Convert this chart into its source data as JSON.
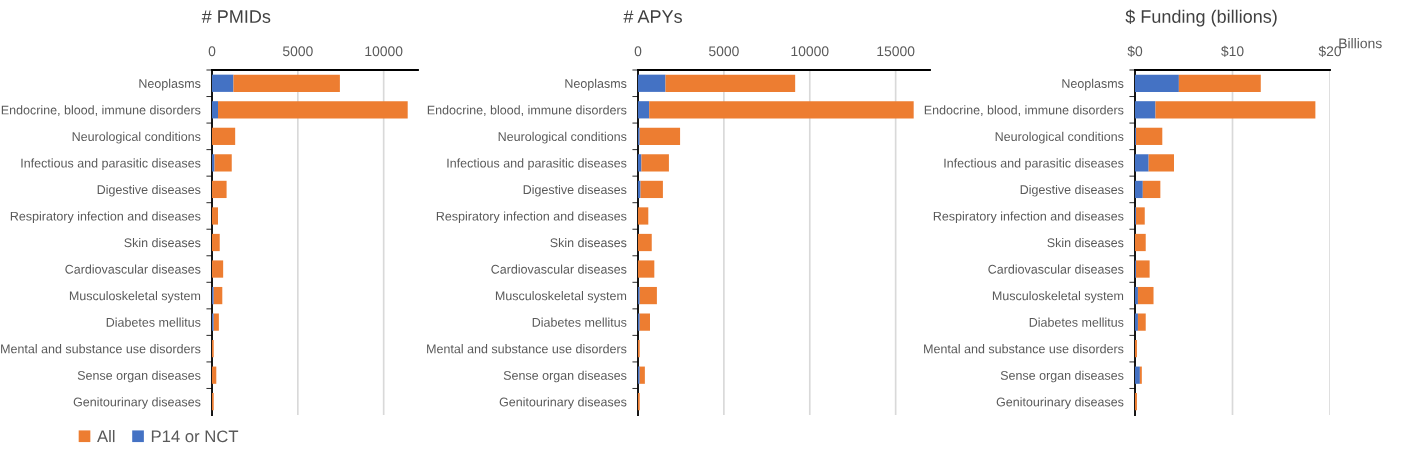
{
  "chart_data": [
    {
      "type": "bar",
      "orientation": "horizontal",
      "stacked": true,
      "title": "# PMIDs",
      "legend": "bottom",
      "grid": "x",
      "categories": [
        "Neoplasms",
        "Endocrine, blood, immune disorders",
        "Neurological conditions",
        "Infectious and parasitic diseases",
        "Digestive diseases",
        "Respiratory infection and diseases",
        "Skin diseases",
        "Cardiovascular diseases",
        "Musculoskeletal system",
        "Diabetes mellitus",
        "Mental and substance use disorders",
        "Sense organ diseases",
        "Genitourinary diseases"
      ],
      "xlim": [
        0,
        12000
      ],
      "xticks": [
        0,
        5000,
        10000
      ],
      "series": [
        {
          "name": "P14 or NCT",
          "color": "#4472c4",
          "values": [
            1250,
            350,
            0,
            150,
            0,
            0,
            0,
            0,
            100,
            100,
            0,
            0,
            0
          ]
        },
        {
          "name": "All",
          "color": "#ed7d31",
          "values": [
            6200,
            11050,
            1350,
            1000,
            850,
            350,
            450,
            650,
            500,
            300,
            100,
            250,
            100
          ]
        }
      ]
    },
    {
      "type": "bar",
      "orientation": "horizontal",
      "stacked": true,
      "title": "# APYs",
      "grid": "x",
      "categories": [
        "Neoplasms",
        "Endocrine, blood, immune disorders",
        "Neurological conditions",
        "Infectious and parasitic diseases",
        "Digestive diseases",
        "Respiratory infection and diseases",
        "Skin diseases",
        "Cardiovascular diseases",
        "Musculoskeletal system",
        "Diabetes mellitus",
        "Mental and substance use disorders",
        "Sense organ diseases",
        "Genitourinary diseases"
      ],
      "xlim": [
        0,
        17000
      ],
      "xticks": [
        0,
        5000,
        10000,
        15000
      ],
      "series": [
        {
          "color": "#4472c4",
          "values": [
            1600,
            650,
            100,
            200,
            150,
            0,
            0,
            0,
            100,
            100,
            0,
            100,
            0
          ]
        },
        {
          "color": "#ed7d31",
          "values": [
            7550,
            15400,
            2350,
            1600,
            1300,
            600,
            800,
            950,
            1000,
            600,
            100,
            300,
            100
          ]
        }
      ]
    },
    {
      "type": "bar",
      "orientation": "horizontal",
      "stacked": true,
      "title": "$ Funding (billions)",
      "xlabel": "Billions",
      "grid": "x",
      "categories": [
        "Neoplasms",
        "Endocrine, blood, immune disorders",
        "Neurological conditions",
        "Infectious and parasitic diseases",
        "Digestive diseases",
        "Respiratory infection and diseases",
        "Skin diseases",
        "Cardiovascular diseases",
        "Musculoskeletal system",
        "Diabetes mellitus",
        "Mental and substance use disorders",
        "Sense organ diseases",
        "Genitourinary diseases"
      ],
      "xlim": [
        0,
        20
      ],
      "xticks": [
        {
          "value": 0,
          "label": "$0"
        },
        {
          "value": 10,
          "label": "$10"
        },
        {
          "value": 20,
          "label": "$20"
        }
      ],
      "series": [
        {
          "color": "#4472c4",
          "values": [
            4.5,
            2.1,
            0.1,
            1.4,
            0.8,
            0.1,
            0,
            0.1,
            0.3,
            0.3,
            0,
            0.5,
            0
          ]
        },
        {
          "color": "#ed7d31",
          "values": [
            8.4,
            16.4,
            2.7,
            2.6,
            1.8,
            0.9,
            1.1,
            1.4,
            1.6,
            0.8,
            0.2,
            0.2,
            0.2
          ]
        }
      ]
    }
  ]
}
